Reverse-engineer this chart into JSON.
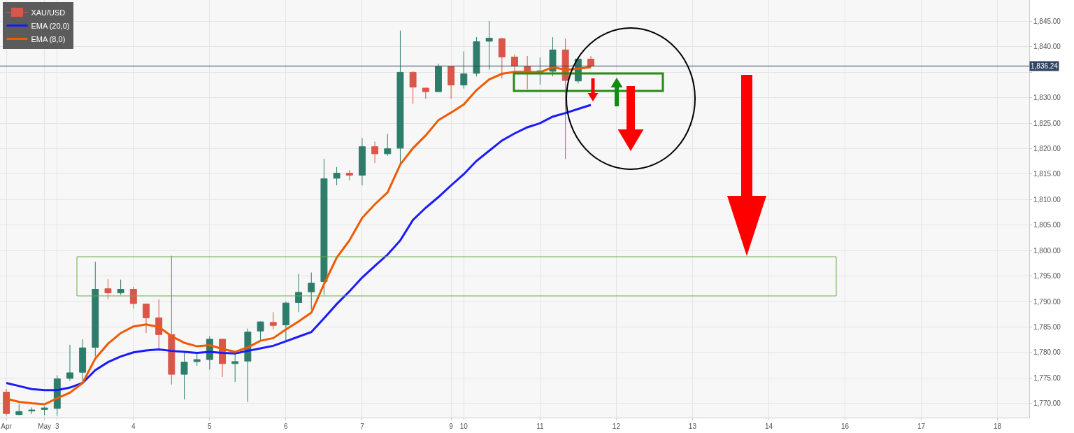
{
  "chart_data": {
    "type": "candlestick",
    "categories": [
      "Apr",
      null,
      null,
      "May",
      "3",
      null,
      null,
      null,
      null,
      null,
      "4",
      null,
      null,
      null,
      null,
      null,
      "5",
      null,
      null,
      null,
      null,
      null,
      "6",
      null,
      null,
      null,
      null,
      null,
      "7",
      null,
      null,
      null,
      null,
      null,
      null,
      "9",
      "10",
      null,
      null,
      null,
      null,
      null,
      "11",
      null,
      null,
      null,
      null,
      null,
      "12",
      null,
      null,
      null,
      null,
      null,
      "13",
      null,
      null,
      null,
      null,
      null,
      "14",
      null,
      null,
      null,
      null,
      null,
      "16",
      null,
      null,
      null,
      null,
      null,
      "17",
      null,
      null,
      null,
      null,
      null,
      "18",
      null,
      null
    ],
    "series": [
      {
        "name": "XAU/USD",
        "type": "candlestick",
        "ohlc": [
          [
            1772.2,
            1772.8,
            1767.6,
            1768.0
          ],
          [
            1767.8,
            1769.9,
            1767.6,
            1768.4
          ],
          [
            1768.5,
            1769.2,
            1767.9,
            1768.7
          ],
          [
            1768.8,
            1769.4,
            1767.7,
            1769.1
          ],
          [
            1769.0,
            1775.5,
            1767.6,
            1774.8
          ],
          [
            1774.9,
            1781.5,
            1774.4,
            1776.0
          ],
          [
            1776.1,
            1782.6,
            1774.4,
            1780.9
          ],
          [
            1781.0,
            1797.8,
            1779.2,
            1792.4
          ],
          [
            1792.5,
            1794.4,
            1790.4,
            1791.7
          ],
          [
            1791.7,
            1794.3,
            1791.3,
            1792.4
          ],
          [
            1792.4,
            1792.9,
            1788.6,
            1789.6
          ],
          [
            1789.5,
            1789.6,
            1783.8,
            1786.8
          ],
          [
            1786.8,
            1790.4,
            1780.8,
            1783.5
          ],
          [
            1783.5,
            1799.0,
            1773.7,
            1775.7
          ],
          [
            1775.7,
            1779.9,
            1770.8,
            1778.1
          ],
          [
            1778.2,
            1779.7,
            1777.4,
            1778.6
          ],
          [
            1778.6,
            1783.2,
            1776.6,
            1782.6
          ],
          [
            1782.6,
            1782.7,
            1775.2,
            1777.8
          ],
          [
            1777.8,
            1779.9,
            1774.2,
            1778.2
          ],
          [
            1778.3,
            1784.7,
            1770.3,
            1784.0
          ],
          [
            1784.2,
            1786.1,
            1782.2,
            1786.0
          ],
          [
            1785.9,
            1787.9,
            1784.5,
            1785.3
          ],
          [
            1785.4,
            1790.0,
            1782.2,
            1789.7
          ],
          [
            1789.8,
            1795.4,
            1787.9,
            1791.8
          ],
          [
            1791.9,
            1795.7,
            1788.4,
            1793.6
          ],
          [
            1793.9,
            1818.0,
            1791.3,
            1814.1
          ],
          [
            1814.2,
            1816.4,
            1812.8,
            1815.2
          ],
          [
            1815.2,
            1815.8,
            1813.8,
            1814.8
          ],
          [
            1814.8,
            1822.1,
            1812.8,
            1820.4
          ],
          [
            1820.4,
            1821.4,
            1817.2,
            1819.0
          ],
          [
            1819.0,
            1822.9,
            1818.6,
            1820.0
          ],
          [
            1820.1,
            1843.2,
            1817.2,
            1835.0
          ],
          [
            1835.0,
            1835.2,
            1828.8,
            1832.1
          ],
          [
            1831.9,
            1832.0,
            1829.8,
            1831.2
          ],
          [
            1831.2,
            1836.7,
            1831.1,
            1836.1
          ],
          [
            1836.1,
            1836.2,
            1829.8,
            1832.5
          ],
          [
            1832.5,
            1839.1,
            1831.8,
            1834.7
          ],
          [
            1834.8,
            1841.9,
            1834.2,
            1841.0
          ],
          [
            1841.1,
            1845.1,
            1835.5,
            1841.7
          ],
          [
            1841.6,
            1841.8,
            1833.8,
            1838.0
          ],
          [
            1838.0,
            1838.5,
            1835.1,
            1836.2
          ],
          [
            1836.1,
            1838.2,
            1831.7,
            1835.1
          ],
          [
            1835.0,
            1837.9,
            1832.6,
            1835.3
          ],
          [
            1835.2,
            1841.9,
            1834.2,
            1839.4
          ],
          [
            1839.4,
            1841.6,
            1818.0,
            1833.4
          ],
          [
            1833.3,
            1837.8,
            1832.8,
            1837.6
          ],
          [
            1837.6,
            1838.2,
            1836.0,
            1836.2
          ],
          null,
          null,
          null,
          null,
          null,
          null,
          null,
          null,
          null,
          null,
          null,
          null,
          null,
          null,
          null,
          null,
          null,
          null,
          null,
          null,
          null,
          null,
          null,
          null,
          null,
          null,
          null,
          null,
          null,
          null,
          null,
          null,
          null,
          null
        ],
        "colors": [
          "#d9574a",
          "#2e7d6b",
          "#2e7d6b",
          "#2e7d6b",
          "#2e7d6b",
          "#2e7d6b",
          "#2e7d6b",
          "#2e7d6b",
          "#d9574a",
          "#2e7d6b",
          "#d9574a",
          "#d9574a",
          "#d9574a",
          "#d9574a",
          "#2e7d6b",
          "#2e7d6b",
          "#2e7d6b",
          "#d9574a",
          "#2e7d6b",
          "#2e7d6b",
          "#2e7d6b",
          "#d9574a",
          "#2e7d6b",
          "#2e7d6b",
          "#2e7d6b",
          "#2e7d6b",
          "#2e7d6b",
          "#d9574a",
          "#2e7d6b",
          "#d9574a",
          "#2e7d6b",
          "#2e7d6b",
          "#d9574a",
          "#d9574a",
          "#2e7d6b",
          "#d9574a",
          "#2e7d6b",
          "#2e7d6b",
          "#2e7d6b",
          "#d9574a",
          "#d9574a",
          "#d9574a",
          "#2e7d6b",
          "#2e7d6b",
          "#d9574a",
          "#2e7d6b",
          "#d9574a",
          null,
          null,
          null,
          null,
          null,
          null,
          null,
          null,
          null,
          null,
          null,
          null,
          null,
          null,
          null,
          null,
          null,
          null,
          null,
          null,
          null,
          null,
          null,
          null,
          null,
          null,
          null,
          null,
          null,
          null,
          null,
          null,
          null,
          null
        ]
      },
      {
        "name": "EMA (20,0)",
        "type": "line",
        "color": "#1a1aff",
        "values": [
          1774.0,
          1773.4,
          1772.8,
          1772.6,
          1772.6,
          1773.1,
          1774.0,
          1776.5,
          1778.1,
          1779.2,
          1780.0,
          1780.4,
          1780.6,
          1780.3,
          1780.1,
          1779.9,
          1780.1,
          1779.9,
          1779.8,
          1780.3,
          1780.8,
          1781.3,
          1782.2,
          1783.1,
          1784.0,
          1786.7,
          1789.5,
          1792.0,
          1794.7,
          1797.0,
          1799.2,
          1802.0,
          1806.0,
          1808.4,
          1810.5,
          1812.8,
          1815.0,
          1817.6,
          1819.6,
          1821.6,
          1823.0,
          1824.2,
          1825.0,
          1826.3,
          1827.0,
          1827.8,
          1828.6,
          null,
          null,
          null,
          null,
          null,
          null,
          null,
          null,
          null,
          null,
          null,
          null,
          null,
          null,
          null,
          null,
          null,
          null,
          null,
          null,
          null,
          null,
          null,
          null,
          null,
          null,
          null,
          null,
          null,
          null,
          null,
          null,
          null,
          null
        ]
      },
      {
        "name": "EMA (8,0)",
        "type": "line",
        "color": "#f05a00",
        "values": [
          1770.9,
          1770.3,
          1770.0,
          1769.8,
          1771.0,
          1772.1,
          1774.0,
          1778.8,
          1781.7,
          1783.8,
          1785.1,
          1785.5,
          1785.0,
          1783.2,
          1781.9,
          1781.2,
          1781.4,
          1780.7,
          1780.1,
          1781.0,
          1782.3,
          1782.8,
          1784.5,
          1786.1,
          1787.8,
          1793.4,
          1798.6,
          1802.0,
          1806.4,
          1809.1,
          1811.4,
          1816.9,
          1820.1,
          1822.6,
          1825.6,
          1827.1,
          1828.7,
          1831.5,
          1833.6,
          1834.7,
          1835.1,
          1835.1,
          1835.0,
          1836.0,
          1835.5,
          1835.7,
          1836.0,
          null,
          null,
          null,
          null,
          null,
          null,
          null,
          null,
          null,
          null,
          null,
          null,
          null,
          null,
          null,
          null,
          null,
          null,
          null,
          null,
          null,
          null,
          null,
          null,
          null,
          null,
          null,
          null,
          null,
          null,
          null,
          null,
          null,
          null
        ]
      }
    ],
    "ylim": [
      1767.2,
      1849.2
    ],
    "yticks": [
      {
        "value": 1770,
        "label": "1,770.00"
      },
      {
        "value": 1775,
        "label": "1,775.00"
      },
      {
        "value": 1780,
        "label": "1,780.00"
      },
      {
        "value": 1785,
        "label": "1,785.00"
      },
      {
        "value": 1790,
        "label": "1,790.00"
      },
      {
        "value": 1795,
        "label": "1,795.00"
      },
      {
        "value": 1800,
        "label": "1,800.00"
      },
      {
        "value": 1805,
        "label": "1,805.00"
      },
      {
        "value": 1810,
        "label": "1,810.00"
      },
      {
        "value": 1815,
        "label": "1,815.00"
      },
      {
        "value": 1820,
        "label": "1,820.00"
      },
      {
        "value": 1825,
        "label": "1,825.00"
      },
      {
        "value": 1830,
        "label": "1,830.00"
      },
      {
        "value": 1835,
        "label": null
      },
      {
        "value": 1840,
        "label": "1,840.00"
      },
      {
        "value": 1845,
        "label": "1,845.00"
      }
    ],
    "ref_lines": [
      {
        "axis": "y",
        "value": 1836.24,
        "label": "1,836.24",
        "color": "#2f4563"
      }
    ],
    "grid": true,
    "legend": "top left"
  }
}
